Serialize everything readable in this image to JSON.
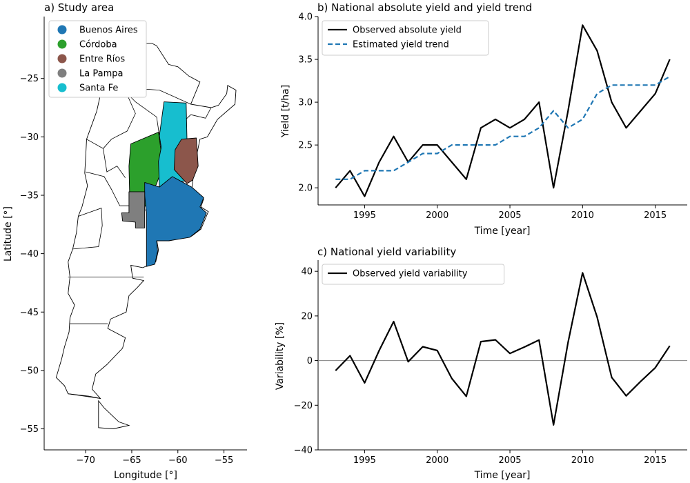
{
  "chart_data": [
    {
      "type": "map",
      "title": "a) Study area",
      "xlabel": "Longitude [°]",
      "ylabel": "Latitude [°]",
      "xlim": [
        -74.5,
        -52.5
      ],
      "ylim": [
        -56.8,
        -19.7
      ],
      "xticks": [
        -70,
        -65,
        -60,
        -55
      ],
      "yticks": [
        -25,
        -30,
        -35,
        -40,
        -45,
        -50,
        -55
      ],
      "xtick_labels": [
        "−70",
        "−65",
        "−60",
        "−55"
      ],
      "ytick_labels": [
        "−25",
        "−30",
        "−35",
        "−40",
        "−45",
        "−50",
        "−55"
      ],
      "legend": [
        {
          "name": "Buenos Aires",
          "color": "#1f77b4"
        },
        {
          "name": "Córdoba",
          "color": "#2ca02c"
        },
        {
          "name": "Entre Ríos",
          "color": "#8c564b"
        },
        {
          "name": "La Pampa",
          "color": "#7f7f7f"
        },
        {
          "name": "Santa Fe",
          "color": "#17becf"
        }
      ],
      "legend_position": "upper-left"
    },
    {
      "type": "line",
      "title": "b) National absolute yield and yield trend",
      "xlabel": "Time [year]",
      "ylabel": "Yield [t/ha]",
      "xlim": [
        1991.8,
        2017.2
      ],
      "ylim": [
        1.8,
        4.0
      ],
      "xticks": [
        1995,
        2000,
        2005,
        2010,
        2015
      ],
      "yticks": [
        2.0,
        2.5,
        3.0,
        3.5,
        4.0
      ],
      "ytick_labels": [
        "2.0",
        "2.5",
        "3.0",
        "3.5",
        "4.0"
      ],
      "x": [
        1993,
        1994,
        1995,
        1996,
        1997,
        1998,
        1999,
        2000,
        2001,
        2002,
        2003,
        2004,
        2005,
        2006,
        2007,
        2008,
        2009,
        2010,
        2011,
        2012,
        2013,
        2014,
        2015,
        2016
      ],
      "series": [
        {
          "name": "Observed absolute yield",
          "color": "#000000",
          "style": "solid",
          "values": [
            2.0,
            2.2,
            1.9,
            2.3,
            2.6,
            2.3,
            2.5,
            2.5,
            2.3,
            2.1,
            2.7,
            2.8,
            2.7,
            2.8,
            3.0,
            2.0,
            2.9,
            3.9,
            3.6,
            3.0,
            2.7,
            2.9,
            3.1,
            3.5
          ]
        },
        {
          "name": "Estimated yield trend",
          "color": "#1f77b4",
          "style": "dashed",
          "values": [
            2.1,
            2.1,
            2.2,
            2.2,
            2.2,
            2.3,
            2.4,
            2.4,
            2.5,
            2.5,
            2.5,
            2.5,
            2.6,
            2.6,
            2.7,
            2.9,
            2.7,
            2.8,
            3.1,
            3.2,
            3.2,
            3.2,
            3.2,
            3.3
          ]
        }
      ],
      "legend_position": "upper-left"
    },
    {
      "type": "line",
      "title": "c) National yield variability",
      "xlabel": "Time [year]",
      "ylabel": "Variability [%]",
      "xlim": [
        1991.8,
        2017.2
      ],
      "ylim": [
        -40,
        45
      ],
      "xticks": [
        1995,
        2000,
        2005,
        2010,
        2015
      ],
      "yticks": [
        -40,
        -20,
        0,
        20,
        40
      ],
      "ytick_labels": [
        "−40",
        "−20",
        "0",
        "20",
        "40"
      ],
      "x": [
        1993,
        1994,
        1995,
        1996,
        1997,
        1998,
        1999,
        2000,
        2001,
        2002,
        2003,
        2004,
        2005,
        2006,
        2007,
        2008,
        2009,
        2010,
        2011,
        2012,
        2013,
        2014,
        2015,
        2016
      ],
      "series": [
        {
          "name": "Observed yield variability",
          "color": "#000000",
          "style": "solid",
          "values": [
            -4.5,
            2.2,
            -10,
            4.5,
            17.5,
            -0.5,
            6.2,
            4.5,
            -8,
            -16,
            8.5,
            9.3,
            3.2,
            6.1,
            9.2,
            -28.8,
            8.2,
            39.3,
            19.5,
            -7.5,
            -15.8,
            -9.3,
            -3.2,
            6.6
          ]
        }
      ],
      "zero_line": true,
      "legend_position": "upper-left"
    }
  ]
}
